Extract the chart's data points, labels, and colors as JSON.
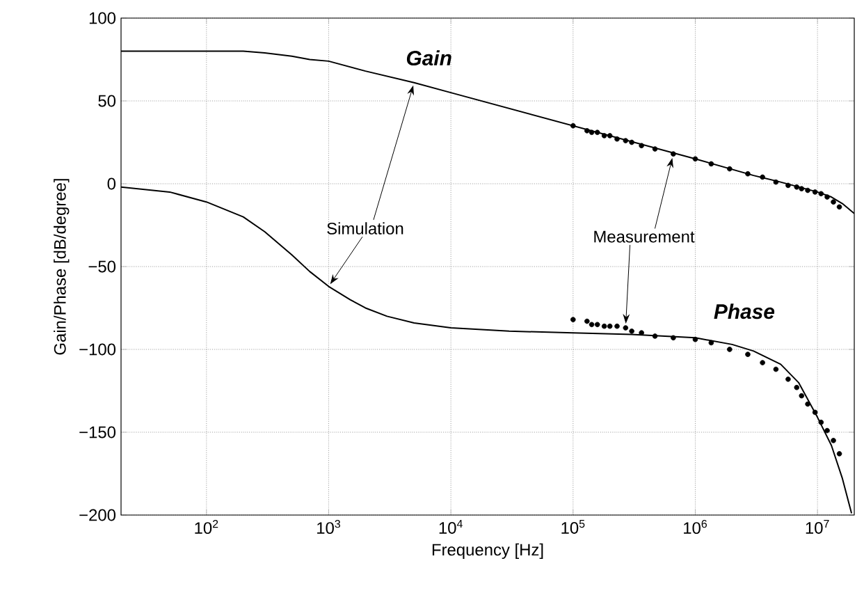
{
  "chart_data": {
    "type": "line",
    "xlabel": "Frequency [Hz]",
    "ylabel": "Gain/Phase [dB/degree]",
    "log": "x",
    "grid": true,
    "xlim": [
      20,
      20000000
    ],
    "ylim": [
      -200,
      100
    ],
    "xticks": [
      {
        "value": 100,
        "label": "10$^{2}$"
      },
      {
        "value": 1000,
        "label": "10$^{3}$"
      },
      {
        "value": 10000,
        "label": "10$^{4}$"
      },
      {
        "value": 100000,
        "label": "10$^{5}$"
      },
      {
        "value": 1000000,
        "label": "10$^{6}$"
      },
      {
        "value": 10000000,
        "label": "10$^{7}$"
      }
    ],
    "yticks": [
      {
        "value": -200,
        "label": "−200"
      },
      {
        "value": -150,
        "label": "−150"
      },
      {
        "value": -100,
        "label": "−100"
      },
      {
        "value": -50,
        "label": "−50"
      },
      0,
      50,
      100
    ],
    "series": [
      {
        "marker": "none",
        "line_style": "solid",
        "color": "#000000",
        "x": [
          20,
          50,
          100,
          200,
          300,
          500,
          700,
          1000,
          2000,
          5000,
          10000,
          100000,
          1000000,
          3000000,
          5000000,
          10000000,
          13000000,
          16000000,
          20000000
        ],
        "values": [
          80,
          80,
          80,
          80,
          79,
          77,
          75,
          74,
          68,
          61,
          55,
          35,
          15,
          5,
          1,
          -5,
          -8,
          -12,
          -18
        ]
      },
      {
        "type": "scatter",
        "marker": "circle",
        "color": "#000000",
        "x": [
          100000,
          130000,
          142000,
          158000,
          180000,
          200000,
          229000,
          269000,
          302000,
          363000,
          468000,
          661000,
          1000000,
          1350000,
          1910000,
          2690000,
          3550000,
          4570000,
          5750000,
          6760000,
          7410000,
          8320000,
          9550000,
          10700000,
          12000000,
          13500000,
          15100000
        ],
        "values": [
          35,
          32,
          31,
          31,
          29,
          29,
          27,
          26,
          25,
          23,
          21,
          18,
          15,
          12,
          9,
          6,
          4,
          1,
          -1,
          -2,
          -3,
          -4,
          -5,
          -6,
          -8,
          -11,
          -14
        ]
      },
      {
        "marker": "none",
        "line_style": "solid",
        "color": "#000000",
        "x": [
          20,
          50,
          100,
          200,
          300,
          500,
          700,
          1000,
          1500,
          2000,
          3000,
          5000,
          10000,
          30000,
          100000,
          300000,
          1000000,
          2000000,
          3000000,
          5000000,
          7000000,
          10000000,
          13000000,
          16000000,
          19000000
        ],
        "values": [
          -2,
          -5,
          -11,
          -20,
          -29,
          -43,
          -53,
          -62,
          -70,
          -75,
          -80,
          -84,
          -87,
          -89,
          -90,
          -91,
          -93,
          -97,
          -101,
          -109,
          -120,
          -141,
          -158,
          -178,
          -199
        ]
      },
      {
        "type": "scatter",
        "marker": "circle",
        "color": "#000000",
        "x": [
          100000,
          130000,
          142000,
          158000,
          180000,
          200000,
          229000,
          269000,
          302000,
          363000,
          468000,
          661000,
          1000000,
          1350000,
          1910000,
          2690000,
          3550000,
          4570000,
          5750000,
          6760000,
          7410000,
          8320000,
          9550000,
          10700000,
          12000000,
          13500000,
          15100000
        ],
        "values": [
          -82,
          -83,
          -85,
          -85,
          -86,
          -86,
          -86,
          -87,
          -89,
          -90,
          -92,
          -93,
          -94,
          -96,
          -100,
          -103,
          -108,
          -112,
          -118,
          -123,
          -128,
          -133,
          -138,
          -144,
          -149,
          -155,
          -163
        ]
      }
    ],
    "annotations": [
      "Gain",
      "Phase",
      "Simulation",
      "Measurement"
    ]
  }
}
